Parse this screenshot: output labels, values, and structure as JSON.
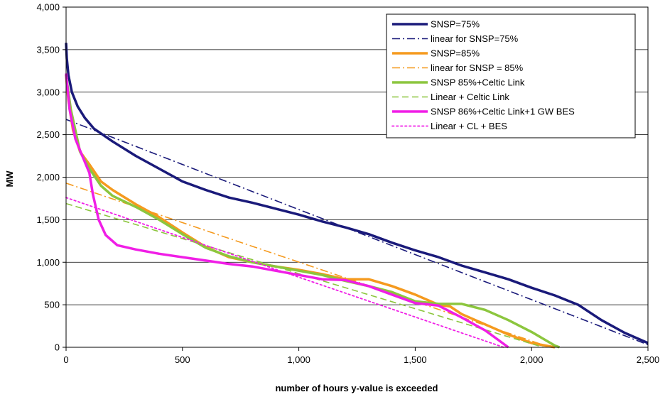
{
  "chart_data": {
    "type": "line",
    "title": "",
    "xlabel": "number of hours y-value is exceeded",
    "ylabel": "MW",
    "xlim": [
      0,
      2500
    ],
    "ylim": [
      0,
      4000
    ],
    "xticks": [
      0,
      500,
      1000,
      1500,
      2000,
      2500
    ],
    "xtick_labels": [
      "0",
      "500",
      "1,000",
      "1,500",
      "2,000",
      "2,500"
    ],
    "yticks": [
      0,
      500,
      1000,
      1500,
      2000,
      2500,
      3000,
      3500,
      4000
    ],
    "ytick_labels": [
      "0",
      "500",
      "1,000",
      "1,500",
      "2,000",
      "2,500",
      "3,000",
      "3,500",
      "4,000"
    ],
    "grid": "horizontal",
    "legend_position": "top-right",
    "series": [
      {
        "name": "SNSP=75%",
        "color": "#1a1a7a",
        "style": "solid",
        "width": 3.5,
        "points": [
          [
            0,
            3580
          ],
          [
            3,
            3400
          ],
          [
            10,
            3200
          ],
          [
            25,
            3000
          ],
          [
            50,
            2830
          ],
          [
            80,
            2700
          ],
          [
            120,
            2570
          ],
          [
            200,
            2420
          ],
          [
            300,
            2250
          ],
          [
            400,
            2100
          ],
          [
            500,
            1950
          ],
          [
            600,
            1850
          ],
          [
            700,
            1760
          ],
          [
            800,
            1700
          ],
          [
            900,
            1630
          ],
          [
            1000,
            1560
          ],
          [
            1100,
            1480
          ],
          [
            1200,
            1410
          ],
          [
            1300,
            1330
          ],
          [
            1400,
            1230
          ],
          [
            1500,
            1140
          ],
          [
            1600,
            1060
          ],
          [
            1700,
            960
          ],
          [
            1800,
            880
          ],
          [
            1900,
            800
          ],
          [
            2000,
            700
          ],
          [
            2100,
            610
          ],
          [
            2200,
            500
          ],
          [
            2300,
            320
          ],
          [
            2400,
            170
          ],
          [
            2500,
            50
          ]
        ]
      },
      {
        "name": "linear for SNSP=75%",
        "color": "#1a1a7a",
        "style": "dashdot",
        "width": 1.6,
        "points": [
          [
            0,
            2680
          ],
          [
            2500,
            30
          ]
        ]
      },
      {
        "name": "SNSP=85%",
        "color": "#f59a1e",
        "style": "solid",
        "width": 3.5,
        "points": [
          [
            0,
            3200
          ],
          [
            10,
            2900
          ],
          [
            30,
            2550
          ],
          [
            60,
            2300
          ],
          [
            100,
            2150
          ],
          [
            150,
            1950
          ],
          [
            200,
            1850
          ],
          [
            300,
            1680
          ],
          [
            400,
            1530
          ],
          [
            500,
            1350
          ],
          [
            600,
            1180
          ],
          [
            700,
            1060
          ],
          [
            800,
            1000
          ],
          [
            900,
            950
          ],
          [
            1000,
            910
          ],
          [
            1100,
            860
          ],
          [
            1200,
            800
          ],
          [
            1300,
            800
          ],
          [
            1400,
            720
          ],
          [
            1500,
            620
          ],
          [
            1600,
            500
          ],
          [
            1650,
            480
          ],
          [
            1700,
            390
          ],
          [
            1800,
            270
          ],
          [
            1900,
            150
          ],
          [
            2000,
            50
          ],
          [
            2100,
            0
          ]
        ]
      },
      {
        "name": "linear for SNSP = 85%",
        "color": "#f59a1e",
        "style": "dashdot",
        "width": 1.6,
        "points": [
          [
            0,
            1930
          ],
          [
            2080,
            0
          ]
        ]
      },
      {
        "name": "SNSP 85%+Celtic Link",
        "color": "#8cc63e",
        "style": "solid",
        "width": 3.5,
        "points": [
          [
            0,
            3200
          ],
          [
            20,
            2800
          ],
          [
            60,
            2300
          ],
          [
            100,
            2100
          ],
          [
            150,
            1900
          ],
          [
            200,
            1780
          ],
          [
            300,
            1650
          ],
          [
            400,
            1500
          ],
          [
            500,
            1330
          ],
          [
            600,
            1170
          ],
          [
            700,
            1070
          ],
          [
            800,
            1000
          ],
          [
            900,
            950
          ],
          [
            1000,
            900
          ],
          [
            1100,
            850
          ],
          [
            1200,
            780
          ],
          [
            1300,
            720
          ],
          [
            1400,
            650
          ],
          [
            1500,
            540
          ],
          [
            1600,
            510
          ],
          [
            1700,
            510
          ],
          [
            1800,
            440
          ],
          [
            1900,
            320
          ],
          [
            2000,
            180
          ],
          [
            2100,
            20
          ],
          [
            2120,
            0
          ]
        ]
      },
      {
        "name": "Linear + Celtic Link",
        "color": "#8cc63e",
        "style": "dash",
        "width": 1.6,
        "points": [
          [
            0,
            1690
          ],
          [
            2050,
            0
          ]
        ]
      },
      {
        "name": "SNSP 86%+Celtic Link+1 GW BES",
        "color": "#f01ee6",
        "style": "solid",
        "width": 3.5,
        "points": [
          [
            0,
            3220
          ],
          [
            15,
            2800
          ],
          [
            40,
            2450
          ],
          [
            70,
            2250
          ],
          [
            100,
            2050
          ],
          [
            115,
            1800
          ],
          [
            140,
            1500
          ],
          [
            170,
            1320
          ],
          [
            220,
            1200
          ],
          [
            300,
            1150
          ],
          [
            400,
            1100
          ],
          [
            500,
            1060
          ],
          [
            600,
            1020
          ],
          [
            700,
            980
          ],
          [
            800,
            950
          ],
          [
            900,
            900
          ],
          [
            1000,
            850
          ],
          [
            1100,
            800
          ],
          [
            1200,
            790
          ],
          [
            1300,
            720
          ],
          [
            1400,
            620
          ],
          [
            1500,
            520
          ],
          [
            1600,
            490
          ],
          [
            1700,
            350
          ],
          [
            1800,
            200
          ],
          [
            1850,
            100
          ],
          [
            1900,
            0
          ]
        ]
      },
      {
        "name": "Linear + CL + BES",
        "color": "#f01ee6",
        "style": "dot",
        "width": 1.8,
        "points": [
          [
            0,
            1760
          ],
          [
            1880,
            0
          ]
        ]
      }
    ]
  }
}
